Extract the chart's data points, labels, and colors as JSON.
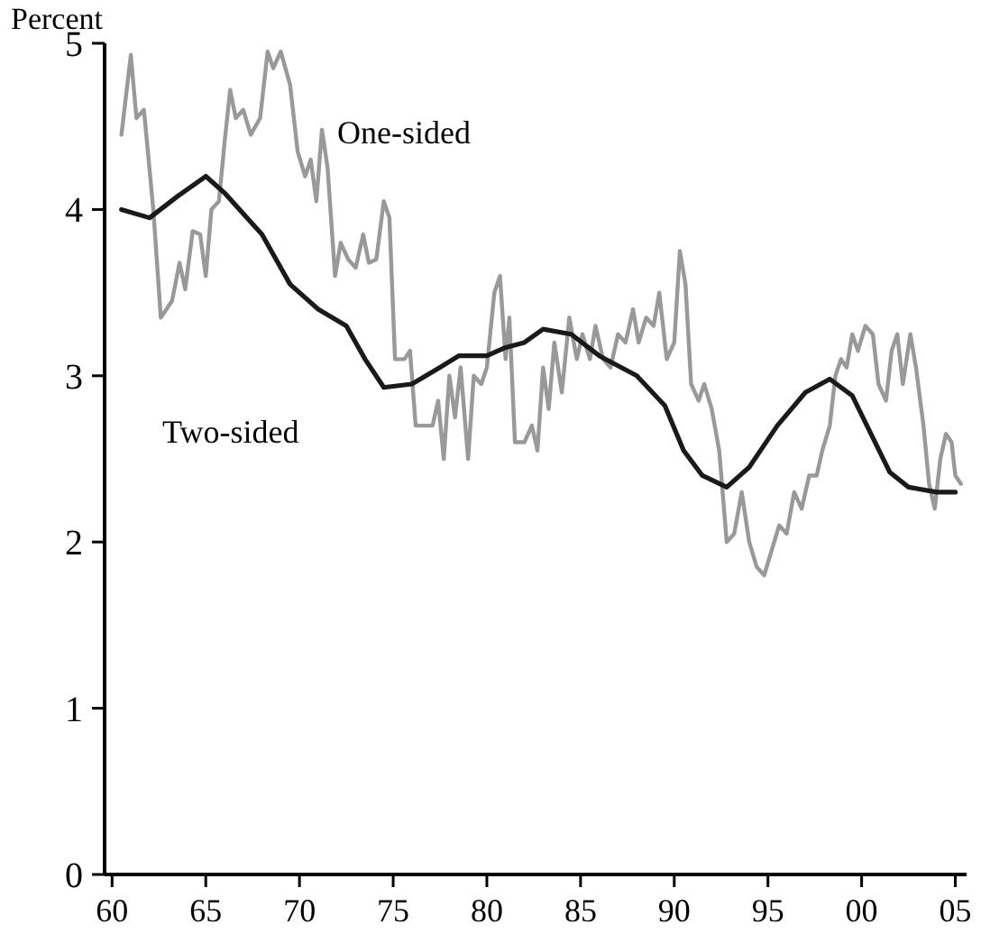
{
  "chart_data": {
    "type": "line",
    "ylabel": "Percent",
    "xlim": [
      1959.6,
      2005.6
    ],
    "ylim": [
      0,
      5
    ],
    "yticks": [
      0,
      1,
      2,
      3,
      4,
      5
    ],
    "xticks": [
      {
        "value": 1960,
        "label": "60"
      },
      {
        "value": 1965,
        "label": "65"
      },
      {
        "value": 1970,
        "label": "70"
      },
      {
        "value": 1975,
        "label": "75"
      },
      {
        "value": 1980,
        "label": "80"
      },
      {
        "value": 1985,
        "label": "85"
      },
      {
        "value": 1990,
        "label": "90"
      },
      {
        "value": 1995,
        "label": "95"
      },
      {
        "value": 2000,
        "label": "00"
      },
      {
        "value": 2005,
        "label": "05"
      }
    ],
    "grid": false,
    "line_style": "solid",
    "marker": "none",
    "series": [
      {
        "name": "One-sided",
        "color": "#999999",
        "x": [
          1960.5,
          1961.0,
          1961.3,
          1961.7,
          1962.2,
          1962.6,
          1963.2,
          1963.6,
          1963.9,
          1964.3,
          1964.7,
          1965.0,
          1965.3,
          1965.7,
          1966.0,
          1966.3,
          1966.6,
          1967.0,
          1967.4,
          1967.9,
          1968.3,
          1968.6,
          1969.0,
          1969.5,
          1969.9,
          1970.3,
          1970.6,
          1970.9,
          1971.2,
          1971.5,
          1971.9,
          1972.2,
          1972.6,
          1973.0,
          1973.4,
          1973.7,
          1974.1,
          1974.5,
          1974.8,
          1975.1,
          1975.6,
          1975.9,
          1976.2,
          1976.7,
          1977.1,
          1977.4,
          1977.7,
          1978.0,
          1978.3,
          1978.6,
          1979.0,
          1979.3,
          1979.7,
          1980.0,
          1980.4,
          1980.7,
          1981.0,
          1981.2,
          1981.5,
          1982.0,
          1982.4,
          1982.7,
          1983.0,
          1983.3,
          1983.6,
          1984.0,
          1984.4,
          1984.8,
          1985.1,
          1985.5,
          1985.8,
          1986.2,
          1986.6,
          1987.0,
          1987.4,
          1987.8,
          1988.1,
          1988.5,
          1988.9,
          1989.2,
          1989.6,
          1990.0,
          1990.3,
          1990.6,
          1990.9,
          1991.3,
          1991.6,
          1992.0,
          1992.4,
          1992.8,
          1993.2,
          1993.6,
          1994.0,
          1994.4,
          1994.8,
          1995.2,
          1995.6,
          1996.0,
          1996.4,
          1996.8,
          1997.2,
          1997.6,
          1997.9,
          1998.3,
          1998.6,
          1998.9,
          1999.2,
          1999.5,
          1999.8,
          2000.2,
          2000.6,
          2000.9,
          2001.3,
          2001.6,
          2001.9,
          2002.2,
          2002.6,
          2002.9,
          2003.3,
          2003.6,
          2003.9,
          2004.2,
          2004.5,
          2004.8,
          2005.0,
          2005.3
        ],
        "values": [
          4.45,
          4.93,
          4.55,
          4.6,
          4.0,
          3.35,
          3.45,
          3.68,
          3.52,
          3.87,
          3.85,
          3.6,
          4.0,
          4.05,
          4.4,
          4.72,
          4.55,
          4.6,
          4.45,
          4.55,
          4.95,
          4.85,
          4.95,
          4.75,
          4.35,
          4.2,
          4.3,
          4.05,
          4.48,
          4.25,
          3.6,
          3.8,
          3.7,
          3.65,
          3.85,
          3.68,
          3.7,
          4.05,
          3.95,
          3.1,
          3.1,
          3.15,
          2.7,
          2.7,
          2.7,
          2.85,
          2.5,
          3.0,
          2.75,
          3.05,
          2.5,
          3.0,
          2.95,
          3.05,
          3.5,
          3.6,
          3.1,
          3.35,
          2.6,
          2.6,
          2.7,
          2.55,
          3.05,
          2.8,
          3.2,
          2.9,
          3.35,
          3.1,
          3.25,
          3.1,
          3.3,
          3.1,
          3.05,
          3.25,
          3.2,
          3.4,
          3.2,
          3.35,
          3.3,
          3.5,
          3.1,
          3.2,
          3.75,
          3.55,
          2.95,
          2.85,
          2.95,
          2.8,
          2.55,
          2.0,
          2.05,
          2.3,
          2.0,
          1.85,
          1.8,
          1.95,
          2.1,
          2.05,
          2.3,
          2.2,
          2.4,
          2.4,
          2.55,
          2.7,
          3.0,
          3.1,
          3.05,
          3.25,
          3.15,
          3.3,
          3.25,
          2.95,
          2.85,
          3.15,
          3.25,
          2.95,
          3.25,
          3.05,
          2.7,
          2.35,
          2.2,
          2.5,
          2.65,
          2.6,
          2.4,
          2.35
        ]
      },
      {
        "name": "Two-sided",
        "color": "#1a1a1a",
        "x": [
          1960.5,
          1962,
          1963.5,
          1965,
          1966,
          1968,
          1969.5,
          1971,
          1972.5,
          1973.5,
          1974.5,
          1976,
          1977.5,
          1978.5,
          1980,
          1981,
          1982,
          1983,
          1984.5,
          1986,
          1988,
          1989.5,
          1990.5,
          1991.5,
          1992.8,
          1994,
          1995.5,
          1997,
          1998.3,
          1999.5,
          2000.5,
          2001.5,
          2002.5,
          2004,
          2005
        ],
        "values": [
          4.0,
          3.95,
          4.08,
          4.2,
          4.1,
          3.85,
          3.55,
          3.4,
          3.3,
          3.1,
          2.93,
          2.95,
          3.05,
          3.12,
          3.12,
          3.17,
          3.2,
          3.28,
          3.25,
          3.12,
          3.0,
          2.82,
          2.55,
          2.4,
          2.33,
          2.45,
          2.7,
          2.9,
          2.98,
          2.88,
          2.65,
          2.42,
          2.33,
          2.3,
          2.3
        ]
      }
    ]
  }
}
